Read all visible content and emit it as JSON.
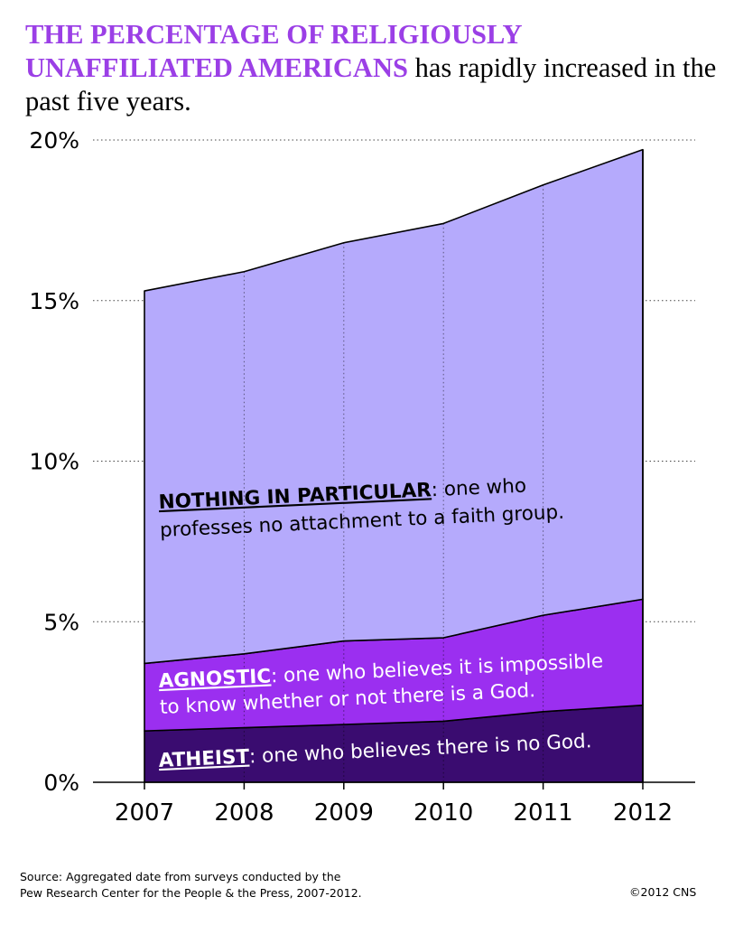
{
  "title": {
    "highlight": "THE PERCENTAGE OF RELIGIOUSLY UNAFFILIATED AMERICANS",
    "rest": " has rapidly increased in the past five years."
  },
  "chart_data": {
    "type": "area",
    "stacked": true,
    "x": [
      2007,
      2008,
      2009,
      2010,
      2011,
      2012
    ],
    "ylim": [
      0,
      20
    ],
    "yticks": [
      0,
      5,
      10,
      15,
      20
    ],
    "ytick_labels": [
      "0%",
      "5%",
      "10%",
      "15%",
      "20%"
    ],
    "xtick_labels": [
      "2007",
      "2008",
      "2009",
      "2010",
      "2011",
      "2012"
    ],
    "grid": "horizontal dotted",
    "series": [
      {
        "name": "ATHEIST",
        "values": [
          1.6,
          1.7,
          1.8,
          1.9,
          2.2,
          2.4
        ],
        "color": "#3a0c70"
      },
      {
        "name": "AGNOSTIC",
        "values": [
          2.1,
          2.3,
          2.6,
          2.6,
          3.0,
          3.3
        ],
        "color": "#9b2ff0"
      },
      {
        "name": "NOTHING IN PARTICULAR",
        "values": [
          11.6,
          11.9,
          12.4,
          12.9,
          13.4,
          14.0
        ],
        "color": "#b5aafc"
      }
    ],
    "annotations": [
      {
        "keyword": "NOTHING IN PARTICULAR",
        "text": ": one who",
        "line2": "professes no attachment to a faith group.",
        "color": "#000000"
      },
      {
        "keyword": "AGNOSTIC",
        "text": ": one who believes it is impossible",
        "line2": "to know whether or not there is a God.",
        "color": "#ffffff"
      },
      {
        "keyword": "ATHEIST",
        "text": ": one who believes there is no God.",
        "line2": "",
        "color": "#ffffff"
      }
    ]
  },
  "source": {
    "line1": "Source: Aggregated date from surveys conducted by the",
    "line2": "Pew Research Center for the People & the Press, 2007-2012."
  },
  "copyright": "©2012 CNS"
}
